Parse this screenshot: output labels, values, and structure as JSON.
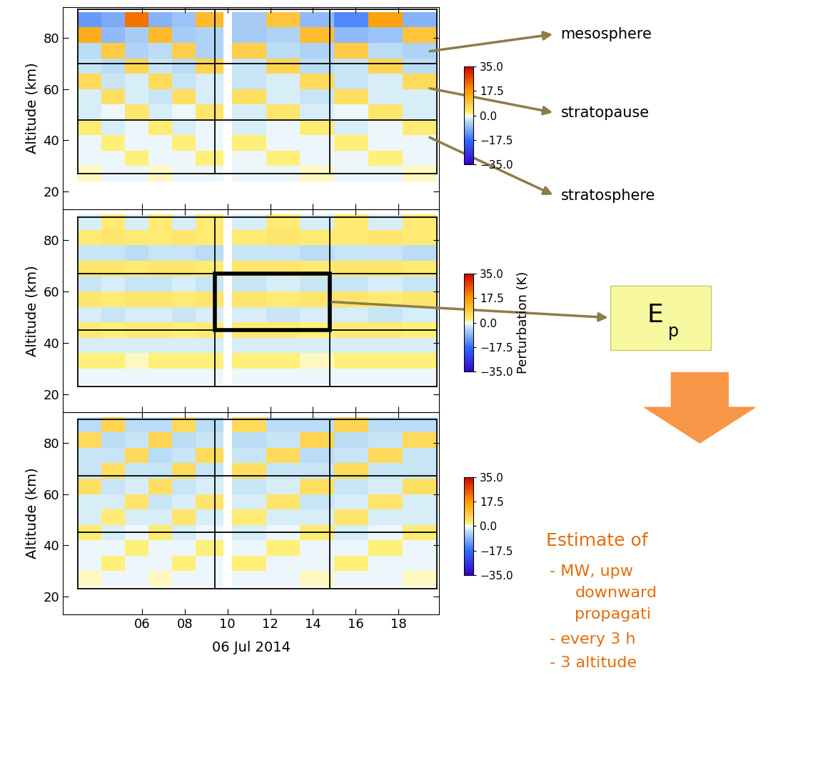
{
  "chart_data": [
    {
      "type": "heatmap",
      "ylabel": "Altitude (km)",
      "tick_labels": "y",
      "xlim": [
        2.3,
        19.9
      ],
      "xticks": [
        {
          "value": 6,
          "label": "06"
        },
        {
          "value": 8,
          "label": "08"
        },
        {
          "value": 10,
          "label": "10"
        },
        {
          "value": 12,
          "label": "12"
        },
        {
          "value": 14,
          "label": "14"
        },
        {
          "value": 16,
          "label": "16"
        },
        {
          "value": 18,
          "label": "18"
        }
      ],
      "ylim": [
        13,
        92
      ],
      "yticks": [
        20,
        40,
        60,
        80
      ],
      "time_edges": [
        3.0,
        4.1,
        5.2,
        6.3,
        7.4,
        8.5,
        9.8,
        10.2,
        11.8,
        13.4,
        15.0,
        16.6,
        18.2,
        19.8
      ],
      "altitude_edges": [
        24,
        30,
        36,
        42,
        48,
        54,
        60,
        66,
        72,
        78,
        84,
        90
      ],
      "cells": [
        [
          1,
          -1,
          -1,
          1,
          -1,
          -1,
          null,
          -1,
          -1,
          1,
          -1,
          -1,
          1
        ],
        [
          -1,
          -1,
          2,
          -1,
          -1,
          2,
          null,
          -1,
          2,
          -1,
          -1,
          2,
          -1
        ],
        [
          -1,
          2,
          -1,
          -1,
          2,
          -1,
          null,
          2,
          -1,
          -1,
          2,
          -1,
          -1
        ],
        [
          3,
          -2,
          -1,
          3,
          -2,
          -1,
          null,
          -2,
          -1,
          3,
          -2,
          -1,
          3
        ],
        [
          -2,
          -1,
          4,
          -2,
          -1,
          4,
          null,
          -2,
          4,
          -2,
          -1,
          4,
          -2
        ],
        [
          -2,
          5,
          -2,
          -3,
          5,
          -2,
          null,
          5,
          -2,
          -3,
          5,
          -2,
          -2
        ],
        [
          6,
          -3,
          -2,
          6,
          -3,
          -2,
          null,
          -3,
          -2,
          6,
          -3,
          -2,
          6
        ],
        [
          -3,
          -4,
          7,
          -3,
          -4,
          7,
          null,
          -3,
          7,
          -4,
          -3,
          7,
          -4
        ],
        [
          -4,
          9,
          -5,
          -4,
          8,
          -5,
          null,
          8,
          -4,
          -5,
          9,
          -4,
          -5
        ],
        [
          14,
          -8,
          -6,
          12,
          -6,
          -5,
          null,
          -6,
          -5,
          11,
          -8,
          -7,
          10
        ],
        [
          -12,
          -10,
          22,
          -9,
          -7,
          12,
          null,
          -6,
          10,
          -8,
          -14,
          16,
          -9
        ]
      ],
      "windows": {
        "time": [
          3.0,
          9.4,
          14.8,
          19.8
        ],
        "altitude": [
          27,
          48,
          70,
          91
        ]
      },
      "colorbar": {
        "range": [
          -35,
          35
        ],
        "ticks": [
          {
            "value": -35,
            "label": "−35.0"
          },
          {
            "value": -17.5,
            "label": "−17.5"
          },
          {
            "value": 0,
            "label": "0.0"
          },
          {
            "value": 17.5,
            "label": "17.5"
          },
          {
            "value": 35,
            "label": "35.0"
          }
        ]
      }
    },
    {
      "type": "heatmap",
      "ylabel": "Altitude (km)",
      "tick_labels": "y",
      "xlim": [
        2.3,
        19.9
      ],
      "xticks": [
        {
          "value": 6,
          "label": "06"
        },
        {
          "value": 8,
          "label": "08"
        },
        {
          "value": 10,
          "label": "10"
        },
        {
          "value": 12,
          "label": "12"
        },
        {
          "value": 14,
          "label": "14"
        },
        {
          "value": 16,
          "label": "16"
        },
        {
          "value": 18,
          "label": "18"
        }
      ],
      "ylim": [
        13,
        92
      ],
      "yticks": [
        20,
        40,
        60,
        80
      ],
      "time_edges": [
        3.0,
        4.1,
        5.2,
        6.3,
        7.4,
        8.5,
        9.8,
        10.2,
        11.8,
        13.4,
        15.0,
        16.6,
        18.2,
        19.8
      ],
      "altitude_edges": [
        24,
        30,
        36,
        42,
        48,
        54,
        60,
        66,
        72,
        78,
        84,
        90
      ],
      "cells": [
        [
          -1,
          -1,
          -1,
          -1,
          -1,
          -1,
          null,
          -1,
          -1,
          -1,
          -1,
          -1,
          -1
        ],
        [
          2,
          2,
          1,
          2,
          2,
          2,
          null,
          2,
          2,
          1,
          2,
          2,
          2
        ],
        [
          -2,
          -2,
          -2,
          -2,
          -2,
          -2,
          null,
          -2,
          -2,
          -2,
          -2,
          -2,
          -2
        ],
        [
          3,
          2,
          3,
          3,
          2,
          3,
          null,
          3,
          3,
          2,
          3,
          3,
          2
        ],
        [
          -2,
          -3,
          -2,
          -2,
          -3,
          -2,
          null,
          -2,
          -3,
          -2,
          -2,
          -3,
          -2
        ],
        [
          4,
          3,
          4,
          4,
          3,
          4,
          null,
          4,
          3,
          4,
          4,
          3,
          4
        ],
        [
          -3,
          -2,
          -3,
          -3,
          -2,
          -3,
          null,
          -3,
          -2,
          -3,
          -3,
          -2,
          -3
        ],
        [
          4,
          4,
          3,
          4,
          4,
          3,
          null,
          4,
          4,
          3,
          4,
          4,
          3
        ],
        [
          -3,
          -3,
          -4,
          -3,
          -3,
          -4,
          null,
          -3,
          -3,
          -4,
          -3,
          -3,
          -4
        ],
        [
          3,
          4,
          3,
          3,
          4,
          3,
          null,
          3,
          4,
          3,
          3,
          4,
          3
        ],
        [
          -2,
          3,
          -2,
          3,
          -2,
          3,
          null,
          -2,
          3,
          -2,
          3,
          -2,
          3
        ]
      ],
      "windows": {
        "time": [
          3.0,
          9.4,
          14.8,
          19.8
        ],
        "altitude": [
          23,
          45,
          67,
          89
        ]
      },
      "highlight": {
        "time": [
          9.4,
          14.8
        ],
        "altitude": [
          45,
          67
        ]
      },
      "colorbar": {
        "range": [
          -35,
          35
        ],
        "label": "Perturbation (K)",
        "ticks": [
          {
            "value": -35,
            "label": "−35.0"
          },
          {
            "value": -17.5,
            "label": "−17.5"
          },
          {
            "value": 0,
            "label": "0.0"
          },
          {
            "value": 17.5,
            "label": "17.5"
          },
          {
            "value": 35,
            "label": "35.0"
          }
        ]
      }
    },
    {
      "type": "heatmap",
      "ylabel": "Altitude (km)",
      "xlabel": "06 Jul 2014",
      "tick_labels": true,
      "xlim": [
        2.3,
        19.9
      ],
      "xticks": [
        {
          "value": 6,
          "label": "06"
        },
        {
          "value": 8,
          "label": "08"
        },
        {
          "value": 10,
          "label": "10"
        },
        {
          "value": 12,
          "label": "12"
        },
        {
          "value": 14,
          "label": "14"
        },
        {
          "value": 16,
          "label": "16"
        },
        {
          "value": 18,
          "label": "18"
        }
      ],
      "ylim": [
        13,
        92
      ],
      "yticks": [
        20,
        40,
        60,
        80
      ],
      "time_edges": [
        3.0,
        4.1,
        5.2,
        6.3,
        7.4,
        8.5,
        9.8,
        10.2,
        11.8,
        13.4,
        15.0,
        16.6,
        18.2,
        19.8
      ],
      "altitude_edges": [
        24,
        30,
        36,
        42,
        48,
        54,
        60,
        66,
        72,
        78,
        84,
        90
      ],
      "cells": [
        [
          1,
          -1,
          -1,
          1,
          -1,
          -1,
          null,
          -1,
          -1,
          1,
          -1,
          -1,
          1
        ],
        [
          -1,
          2,
          -1,
          -1,
          2,
          -1,
          null,
          2,
          -1,
          -1,
          2,
          -1,
          -1
        ],
        [
          -1,
          -1,
          2,
          -1,
          -1,
          2,
          null,
          -1,
          2,
          -1,
          -1,
          2,
          -1
        ],
        [
          3,
          -2,
          -1,
          3,
          -2,
          -1,
          null,
          -2,
          -1,
          3,
          -2,
          -1,
          3
        ],
        [
          -2,
          3,
          -2,
          -2,
          4,
          -2,
          null,
          3,
          -2,
          -2,
          4,
          -2,
          -2
        ],
        [
          -2,
          -2,
          4,
          -3,
          -2,
          4,
          null,
          -2,
          4,
          -3,
          -2,
          4,
          -2
        ],
        [
          5,
          -3,
          -2,
          5,
          -3,
          -2,
          null,
          -3,
          -2,
          5,
          -3,
          -2,
          5
        ],
        [
          -3,
          5,
          -3,
          -3,
          6,
          -3,
          null,
          5,
          -3,
          -3,
          6,
          -3,
          -3
        ],
        [
          -3,
          -3,
          6,
          -4,
          -3,
          6,
          null,
          -3,
          6,
          -4,
          -3,
          6,
          -3
        ],
        [
          6,
          -4,
          -3,
          7,
          -4,
          -3,
          null,
          -4,
          -3,
          7,
          -4,
          -3,
          6
        ],
        [
          -4,
          7,
          -4,
          -4,
          6,
          -4,
          null,
          6,
          -4,
          -4,
          7,
          -4,
          -4
        ]
      ],
      "windows": {
        "time": [
          3.0,
          9.4,
          14.8,
          19.8
        ],
        "altitude": [
          23,
          45,
          67,
          89
        ]
      },
      "colorbar": {
        "range": [
          -35,
          35
        ],
        "ticks": [
          {
            "value": -35,
            "label": "−35.0"
          },
          {
            "value": -17.5,
            "label": "−17.5"
          },
          {
            "value": 0,
            "label": "0.0"
          },
          {
            "value": 17.5,
            "label": "17.5"
          },
          {
            "value": 35,
            "label": "35.0"
          }
        ]
      }
    }
  ],
  "layers": [
    "mesosphere",
    "stratopause",
    "stratosphere"
  ],
  "energy_box": {
    "symbol": "E",
    "subscript": "p"
  },
  "estimate": {
    "title": "Estimate of",
    "lines": [
      "- MW, upw",
      "downward",
      "propagati",
      "- every 3 h",
      "- 3 altitude"
    ]
  }
}
